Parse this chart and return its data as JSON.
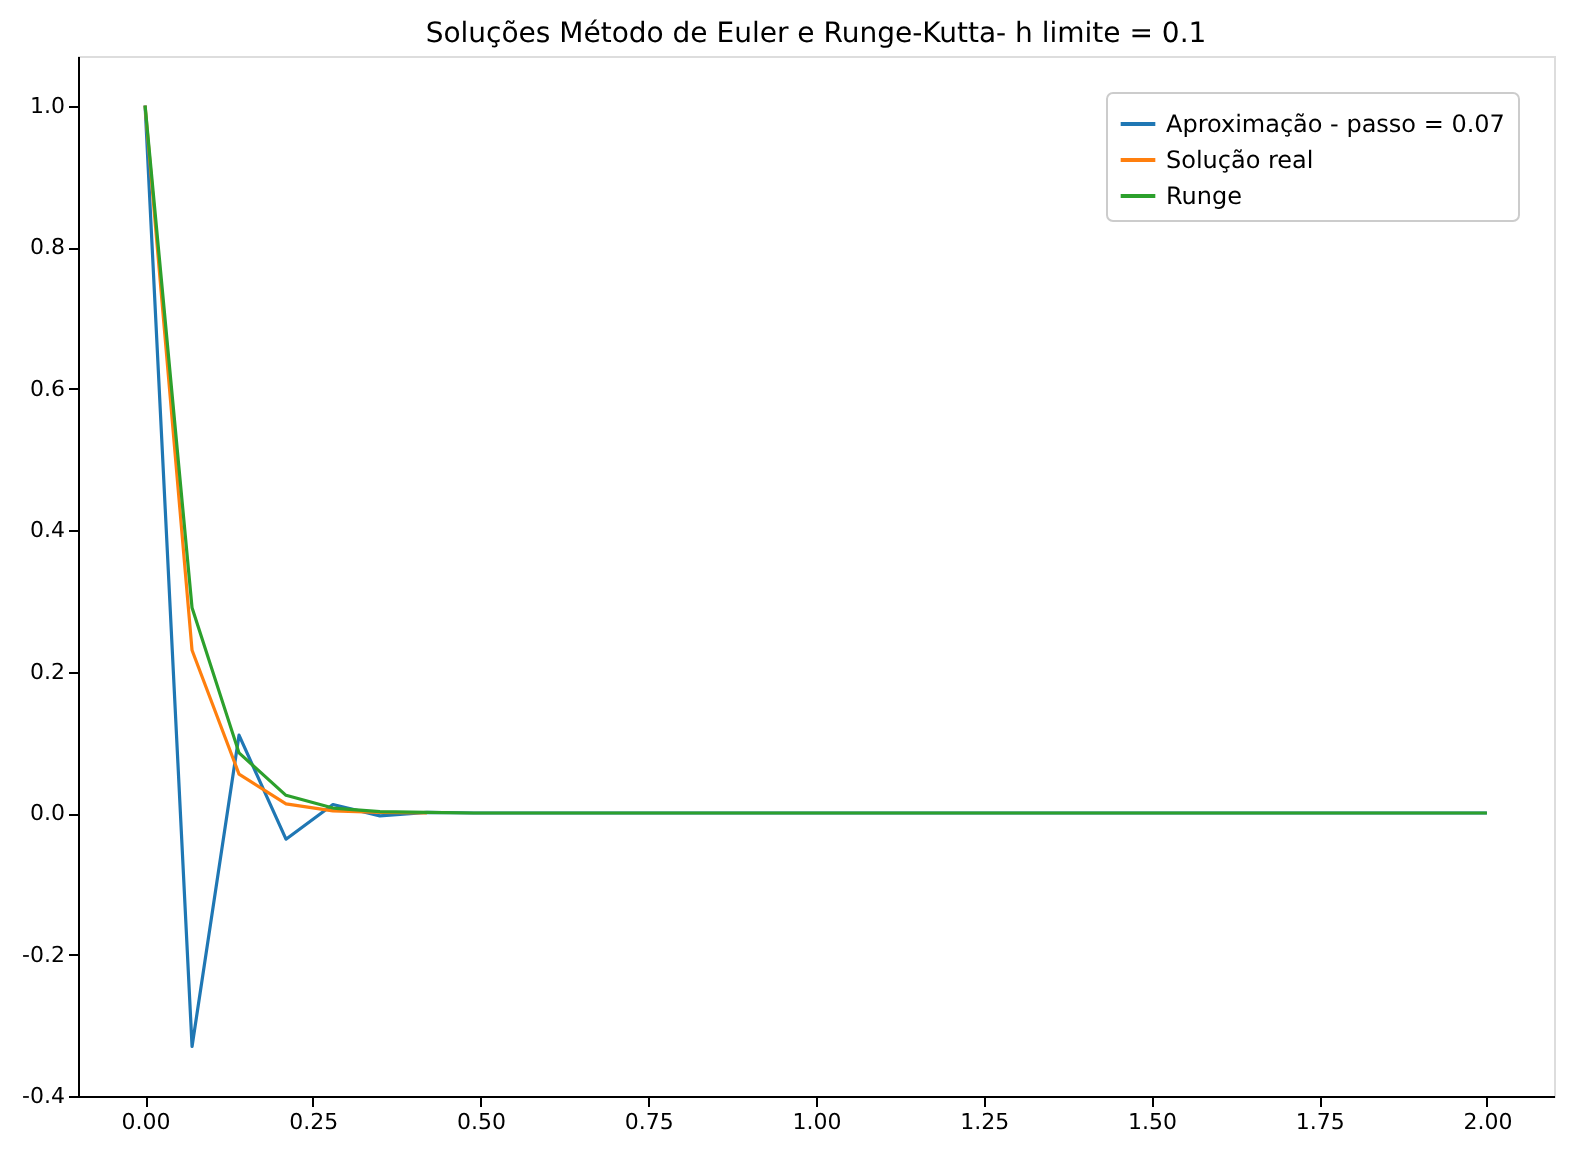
{
  "chart_data": {
    "type": "line",
    "title": "Soluções Método de Euler e Runge-Kutta- h limite = 0.1",
    "x": [
      0,
      0.07,
      0.14,
      0.21,
      0.28,
      0.35,
      0.42,
      0.49,
      2.0
    ],
    "series": [
      {
        "name": "Aproximação - passo = 0.07",
        "color": "#1f77b4",
        "values": [
          1.0,
          -0.33,
          0.11,
          -0.037,
          0.012,
          -0.004,
          0.001,
          0,
          0
        ]
      },
      {
        "name": "Solução real",
        "color": "#ff7f0e",
        "values": [
          1.0,
          0.23,
          0.055,
          0.013,
          0.003,
          0.001,
          0,
          null,
          null
        ]
      },
      {
        "name": "Runge",
        "color": "#2ca02c",
        "values": [
          1.0,
          0.29,
          0.085,
          0.025,
          0.007,
          0.002,
          0.001,
          0,
          0
        ]
      }
    ],
    "xlim": [
      -0.1,
      2.1
    ],
    "ylim": [
      -0.4,
      1.07
    ],
    "xticks": [
      {
        "value": 0,
        "label": "0.00"
      },
      {
        "value": 0.25,
        "label": "0.25"
      },
      {
        "value": 0.5,
        "label": "0.50"
      },
      {
        "value": 0.75,
        "label": "0.75"
      },
      {
        "value": 1,
        "label": "1.00"
      },
      {
        "value": 1.25,
        "label": "1.25"
      },
      {
        "value": 1.5,
        "label": "1.50"
      },
      {
        "value": 1.75,
        "label": "1.75"
      },
      {
        "value": 2,
        "label": "2.00"
      }
    ],
    "yticks": [
      {
        "value": -0.4,
        "label": "-0.4"
      },
      {
        "value": -0.2,
        "label": "-0.2"
      },
      {
        "value": 0,
        "label": "0.0"
      },
      {
        "value": 0.2,
        "label": "0.2"
      },
      {
        "value": 0.4,
        "label": "0.4"
      },
      {
        "value": 0.6,
        "label": "0.6"
      },
      {
        "value": 0.8,
        "label": "0.8"
      },
      {
        "value": 1,
        "label": "1.0"
      }
    ],
    "legend": "top right",
    "grid": false,
    "marker": "none",
    "line_style": "solid"
  }
}
